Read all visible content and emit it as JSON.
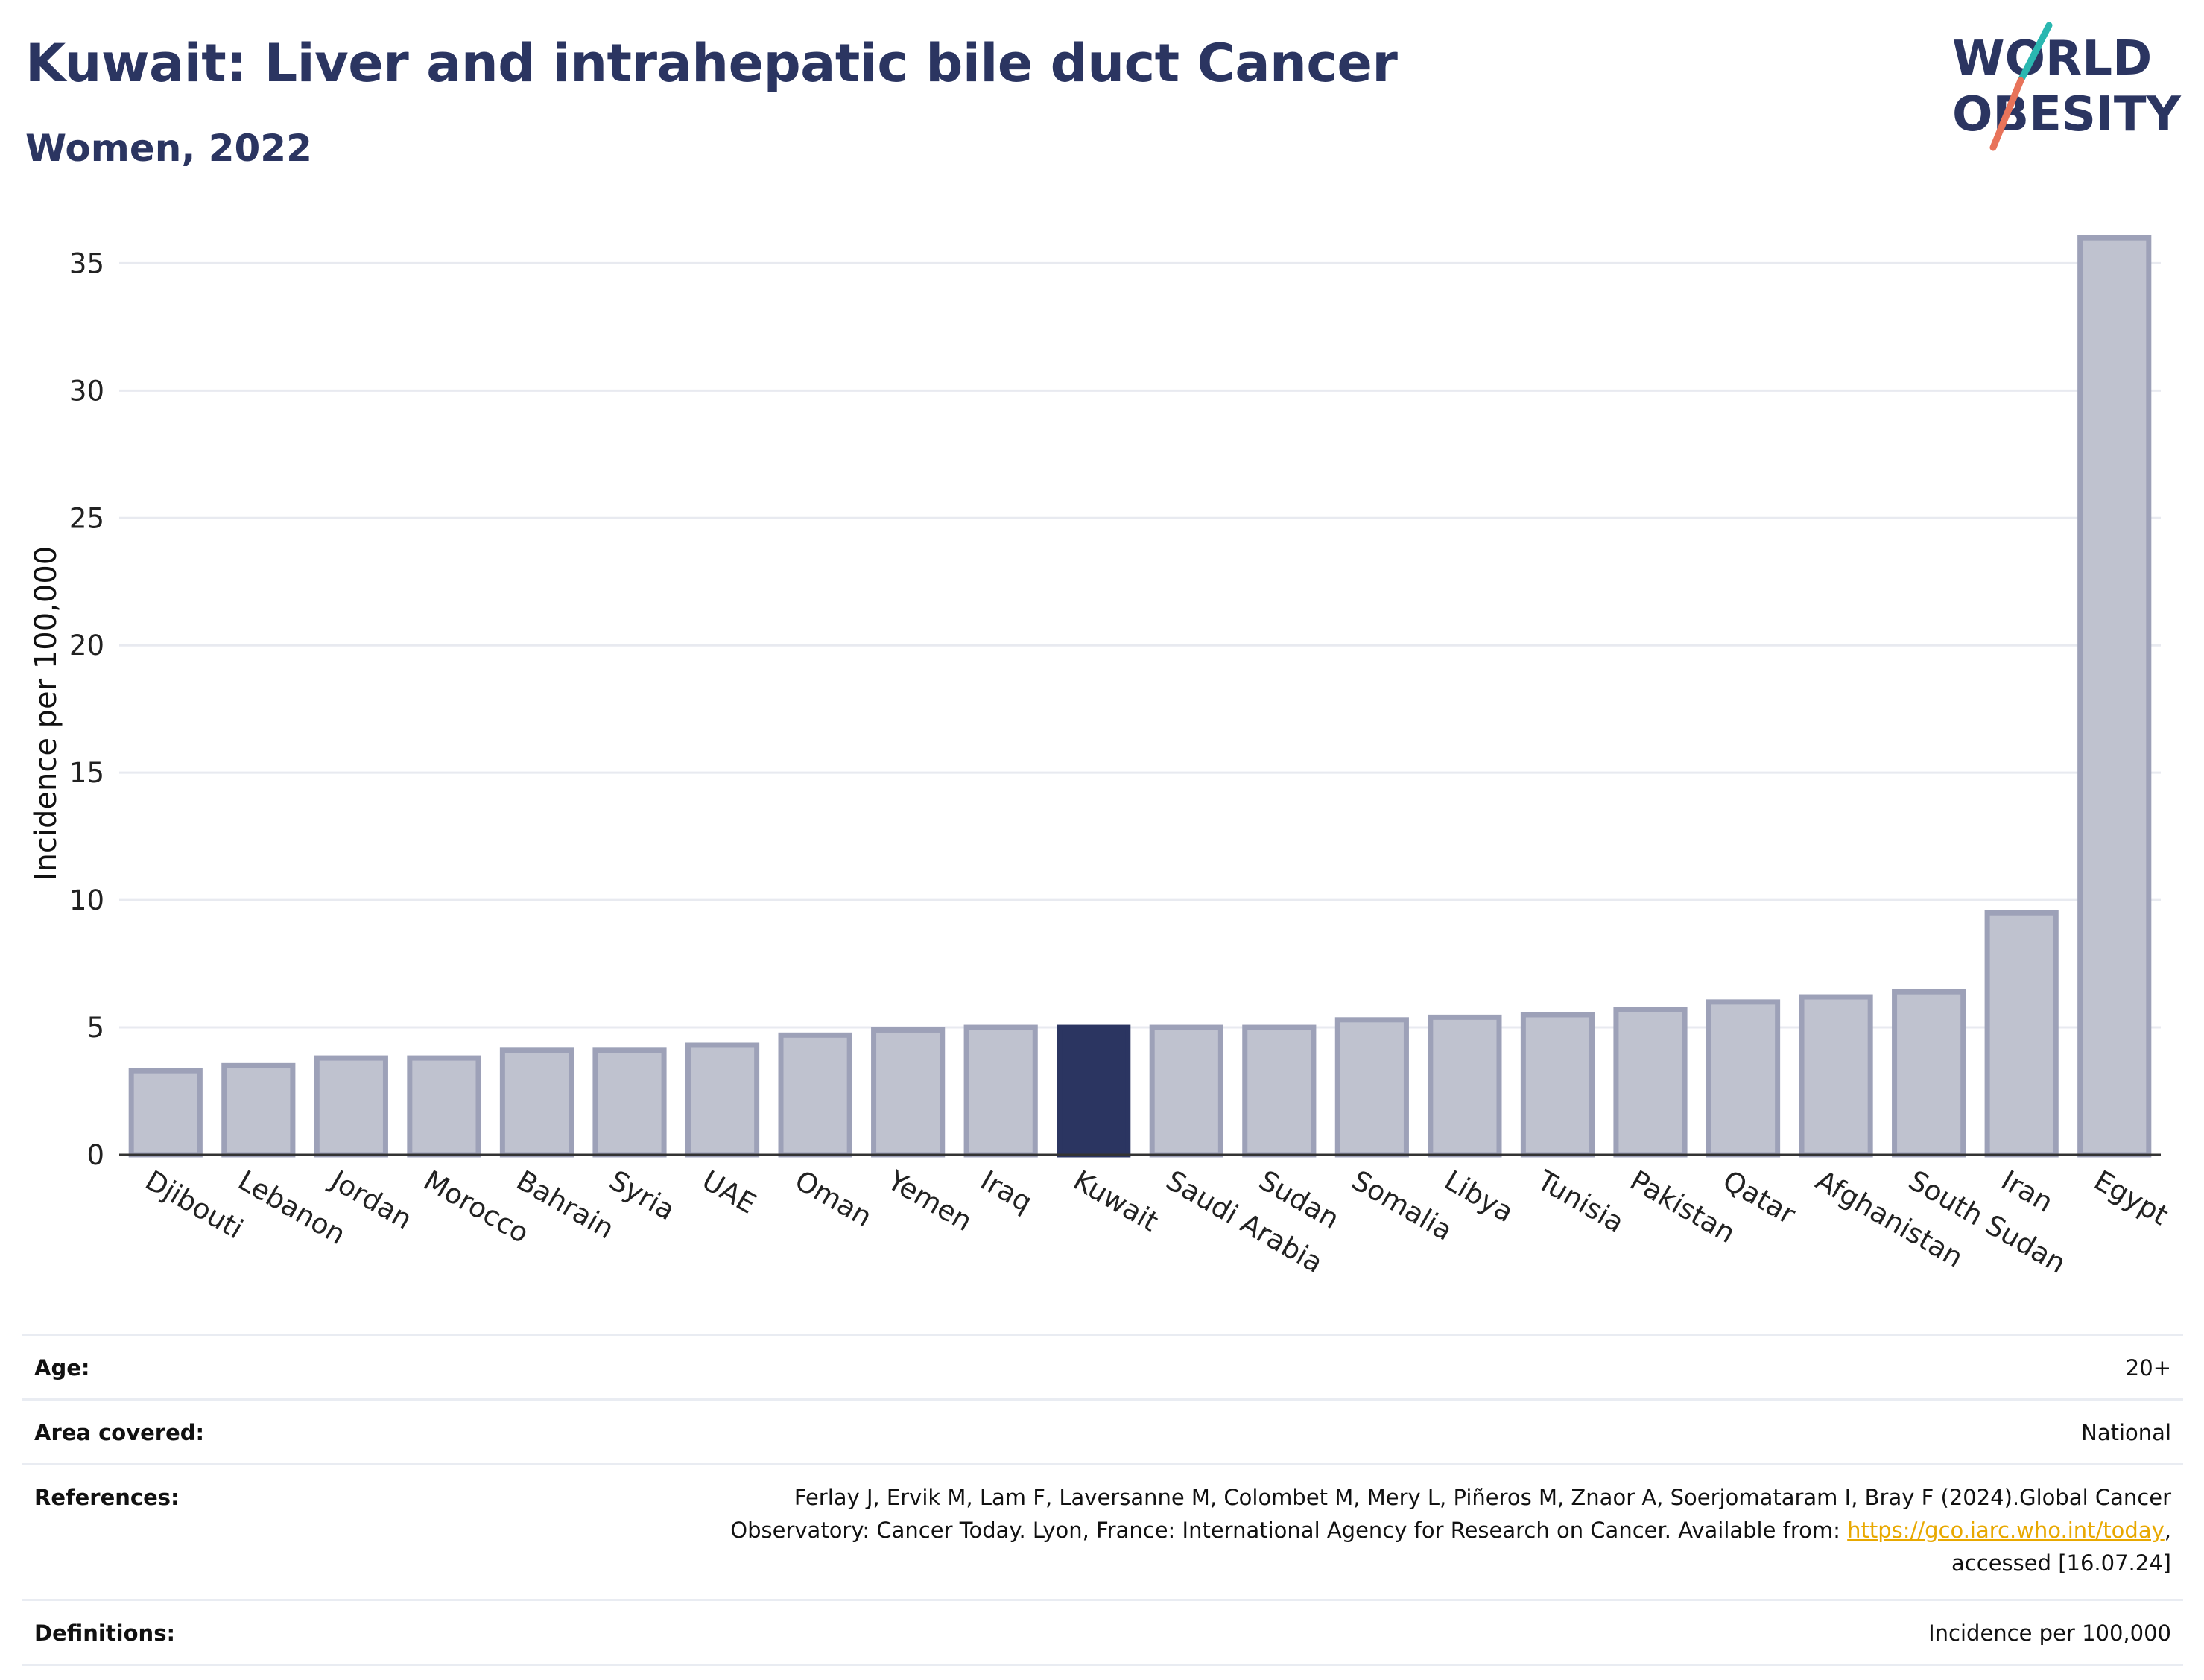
{
  "title": "Kuwait: Liver and intrahepatic bile duct Cancer",
  "subtitle": "Women, 2022",
  "logo": {
    "line1": "WORLD",
    "line2": "OBESITY",
    "colors": [
      "#2b3561",
      "#2ab7b0",
      "#e8735a"
    ]
  },
  "chart_data": {
    "type": "bar",
    "ylabel": "Incidence per 100,000",
    "xlabel": "",
    "ylim": [
      0,
      37
    ],
    "yticks": [
      0,
      5,
      10,
      15,
      20,
      25,
      30,
      35
    ],
    "grid": true,
    "highlight": "Kuwait",
    "colors": {
      "bar": "#bfc2cf",
      "bar_border": "#9da1b8",
      "highlight": "#2b3561"
    },
    "categories": [
      "Djibouti",
      "Lebanon",
      "Jordan",
      "Morocco",
      "Bahrain",
      "Syria",
      "UAE",
      "Oman",
      "Yemen",
      "Iraq",
      "Kuwait",
      "Saudi Arabia",
      "Sudan",
      "Somalia",
      "Libya",
      "Tunisia",
      "Pakistan",
      "Qatar",
      "Afghanistan",
      "South Sudan",
      "Iran",
      "Egypt"
    ],
    "values": [
      3.3,
      3.5,
      3.8,
      3.8,
      4.1,
      4.1,
      4.3,
      4.7,
      4.9,
      5.0,
      5.0,
      5.0,
      5.0,
      5.3,
      5.4,
      5.5,
      5.7,
      6.0,
      6.2,
      6.4,
      9.5,
      36.0
    ]
  },
  "meta": {
    "age_label": "Age:",
    "age_value": "20+",
    "area_label": "Area covered:",
    "area_value": "National",
    "ref_label": "References:",
    "ref_text_1": "Ferlay J, Ervik M, Lam F, Laversanne M, Colombet M, Mery L, Piñeros M, Znaor A, Soerjomataram I, Bray F (2024).Global Cancer",
    "ref_text_2": "Observatory: Cancer Today. Lyon, France: International Agency for Research on Cancer. Available from: ",
    "ref_link": "https://gco.iarc.who.int/today",
    "ref_text_3": ",",
    "ref_text_4": "accessed [16.07.24]",
    "def_label": "Definitions:",
    "def_value": "Incidence per 100,000"
  }
}
